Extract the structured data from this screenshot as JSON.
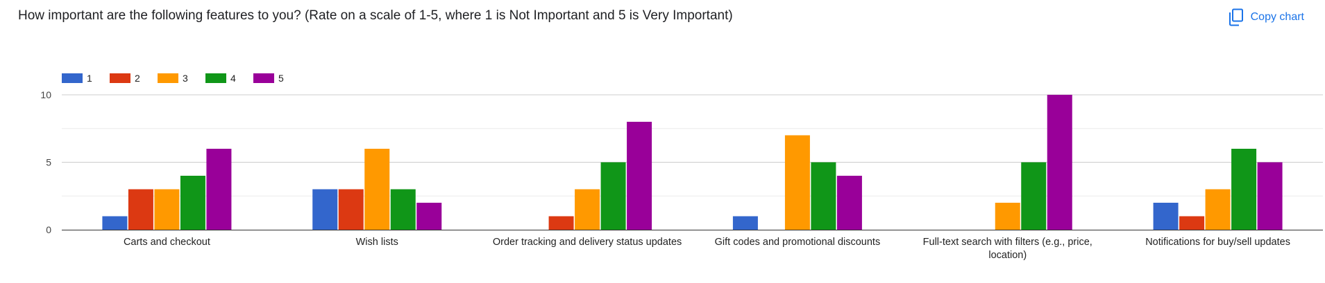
{
  "header": {
    "question": "How important are the following features to you? (Rate on a scale of 1-5, where 1 is Not Important and 5 is Very Important)",
    "copy_label": "Copy chart",
    "copy_icon": "copy-icon"
  },
  "chart_data": {
    "type": "bar",
    "title": "",
    "xlabel": "",
    "ylabel": "",
    "ylim": [
      0,
      10
    ],
    "yticks": [
      "0",
      "5",
      "10"
    ],
    "grid": true,
    "legend_position": "top-left",
    "categories": [
      "Carts and checkout",
      "Wish lists",
      "Order tracking and delivery status updates",
      "Gift codes and promotional discounts",
      "Full-text search with filters (e.g., price, location)",
      "Notifications for buy/sell updates"
    ],
    "series": [
      {
        "name": "1",
        "color": "#3366cc",
        "values": [
          1,
          3,
          0,
          1,
          0,
          2
        ]
      },
      {
        "name": "2",
        "color": "#dc3912",
        "values": [
          3,
          3,
          1,
          0,
          0,
          1
        ]
      },
      {
        "name": "3",
        "color": "#ff9900",
        "values": [
          3,
          6,
          3,
          7,
          2,
          3
        ]
      },
      {
        "name": "4",
        "color": "#109618",
        "values": [
          4,
          3,
          5,
          5,
          5,
          6
        ]
      },
      {
        "name": "5",
        "color": "#990099",
        "values": [
          6,
          2,
          8,
          4,
          10,
          5
        ]
      }
    ]
  }
}
